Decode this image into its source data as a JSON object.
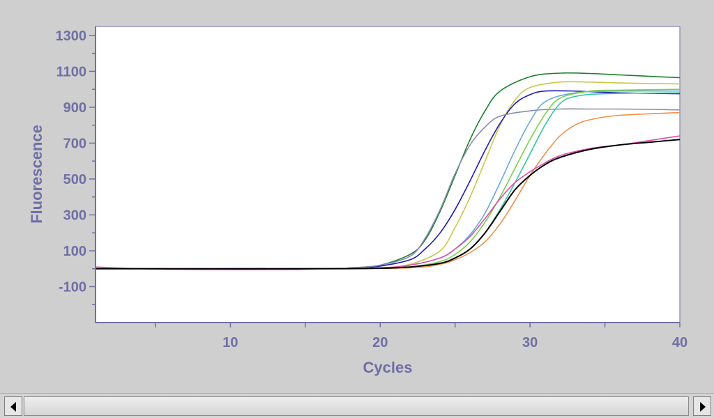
{
  "chart_data": {
    "type": "line",
    "title": "",
    "xlabel": "Cycles",
    "ylabel": "Fluorescence",
    "xlim": [
      1,
      40
    ],
    "ylim": [
      -300,
      1350
    ],
    "x_ticks": [
      10,
      20,
      30,
      40
    ],
    "y_ticks": [
      -100,
      100,
      300,
      500,
      700,
      900,
      1100,
      1300
    ],
    "grid": false,
    "legend": "none",
    "series": [
      {
        "color": "#1a7f2a",
        "values": [
          [
            1,
            0
          ],
          [
            16,
            0
          ],
          [
            18,
            5
          ],
          [
            20,
            20
          ],
          [
            22,
            80
          ],
          [
            23,
            160
          ],
          [
            24,
            320
          ],
          [
            25,
            520
          ],
          [
            26,
            720
          ],
          [
            27,
            880
          ],
          [
            28,
            990
          ],
          [
            30,
            1070
          ],
          [
            32,
            1090
          ],
          [
            34,
            1088
          ],
          [
            36,
            1080
          ],
          [
            38,
            1072
          ],
          [
            40,
            1065
          ]
        ]
      },
      {
        "color": "#c8c84a",
        "values": [
          [
            1,
            0
          ],
          [
            16,
            0
          ],
          [
            20,
            5
          ],
          [
            22,
            25
          ],
          [
            24,
            100
          ],
          [
            25,
            230
          ],
          [
            26,
            400
          ],
          [
            27,
            600
          ],
          [
            28,
            800
          ],
          [
            29,
            940
          ],
          [
            30,
            1010
          ],
          [
            32,
            1040
          ],
          [
            34,
            1040
          ],
          [
            36,
            1035
          ],
          [
            38,
            1032
          ],
          [
            40,
            1030
          ]
        ]
      },
      {
        "color": "#1c1cb4",
        "values": [
          [
            1,
            0
          ],
          [
            16,
            0
          ],
          [
            18,
            3
          ],
          [
            20,
            15
          ],
          [
            22,
            50
          ],
          [
            23,
            110
          ],
          [
            24,
            200
          ],
          [
            25,
            330
          ],
          [
            26,
            490
          ],
          [
            27,
            660
          ],
          [
            28,
            810
          ],
          [
            29,
            920
          ],
          [
            30,
            970
          ],
          [
            31,
            990
          ],
          [
            33,
            990
          ],
          [
            36,
            980
          ],
          [
            40,
            975
          ]
        ]
      },
      {
        "color": "#8a8ab0",
        "values": [
          [
            1,
            0
          ],
          [
            16,
            0
          ],
          [
            18,
            5
          ],
          [
            20,
            20
          ],
          [
            22,
            70
          ],
          [
            23,
            170
          ],
          [
            24,
            330
          ],
          [
            25,
            530
          ],
          [
            26,
            690
          ],
          [
            27,
            790
          ],
          [
            28,
            850
          ],
          [
            30,
            880
          ],
          [
            32,
            890
          ],
          [
            34,
            890
          ],
          [
            36,
            890
          ],
          [
            38,
            888
          ],
          [
            40,
            885
          ]
        ]
      },
      {
        "color": "#6aa8d8",
        "values": [
          [
            1,
            0
          ],
          [
            16,
            0
          ],
          [
            20,
            5
          ],
          [
            22,
            20
          ],
          [
            24,
            60
          ],
          [
            25,
            110
          ],
          [
            26,
            190
          ],
          [
            27,
            310
          ],
          [
            28,
            480
          ],
          [
            29,
            660
          ],
          [
            30,
            820
          ],
          [
            31,
            930
          ],
          [
            33,
            980
          ],
          [
            36,
            990
          ],
          [
            40,
            990
          ]
        ]
      },
      {
        "color": "#30c8a0",
        "values": [
          [
            1,
            0
          ],
          [
            16,
            0
          ],
          [
            20,
            3
          ],
          [
            22,
            10
          ],
          [
            24,
            30
          ],
          [
            25,
            60
          ],
          [
            26,
            110
          ],
          [
            27,
            200
          ],
          [
            28,
            330
          ],
          [
            29,
            480
          ],
          [
            30,
            640
          ],
          [
            31,
            800
          ],
          [
            32,
            920
          ],
          [
            33,
            960
          ],
          [
            35,
            975
          ],
          [
            40,
            980
          ]
        ]
      },
      {
        "color": "#7ad048",
        "values": [
          [
            1,
            0
          ],
          [
            16,
            0
          ],
          [
            20,
            3
          ],
          [
            22,
            10
          ],
          [
            24,
            40
          ],
          [
            25,
            80
          ],
          [
            26,
            150
          ],
          [
            27,
            260
          ],
          [
            28,
            400
          ],
          [
            29,
            560
          ],
          [
            30,
            720
          ],
          [
            31,
            860
          ],
          [
            32,
            950
          ],
          [
            34,
            990
          ],
          [
            36,
            995
          ],
          [
            40,
            1000
          ]
        ]
      },
      {
        "color": "#f0904a",
        "values": [
          [
            1,
            0
          ],
          [
            16,
            0
          ],
          [
            22,
            5
          ],
          [
            24,
            25
          ],
          [
            25,
            50
          ],
          [
            26,
            90
          ],
          [
            27,
            150
          ],
          [
            28,
            250
          ],
          [
            29,
            380
          ],
          [
            30,
            520
          ],
          [
            31,
            640
          ],
          [
            32,
            740
          ],
          [
            33,
            800
          ],
          [
            34,
            830
          ],
          [
            36,
            855
          ],
          [
            40,
            870
          ]
        ]
      },
      {
        "color": "#e04cb0",
        "values": [
          [
            1,
            10
          ],
          [
            4,
            0
          ],
          [
            8,
            -5
          ],
          [
            14,
            -5
          ],
          [
            16,
            0
          ],
          [
            20,
            5
          ],
          [
            22,
            20
          ],
          [
            24,
            60
          ],
          [
            25,
            110
          ],
          [
            26,
            180
          ],
          [
            27,
            280
          ],
          [
            28,
            390
          ],
          [
            29,
            480
          ],
          [
            30,
            540
          ],
          [
            31,
            590
          ],
          [
            32,
            630
          ],
          [
            34,
            670
          ],
          [
            36,
            690
          ],
          [
            38,
            715
          ],
          [
            40,
            740
          ]
        ]
      },
      {
        "color": "#000000",
        "values": [
          [
            1,
            0
          ],
          [
            16,
            0
          ],
          [
            20,
            3
          ],
          [
            22,
            10
          ],
          [
            24,
            30
          ],
          [
            25,
            60
          ],
          [
            26,
            110
          ],
          [
            27,
            200
          ],
          [
            28,
            320
          ],
          [
            29,
            440
          ],
          [
            30,
            520
          ],
          [
            31,
            580
          ],
          [
            32,
            620
          ],
          [
            34,
            665
          ],
          [
            36,
            690
          ],
          [
            38,
            705
          ],
          [
            40,
            720
          ]
        ]
      }
    ]
  }
}
